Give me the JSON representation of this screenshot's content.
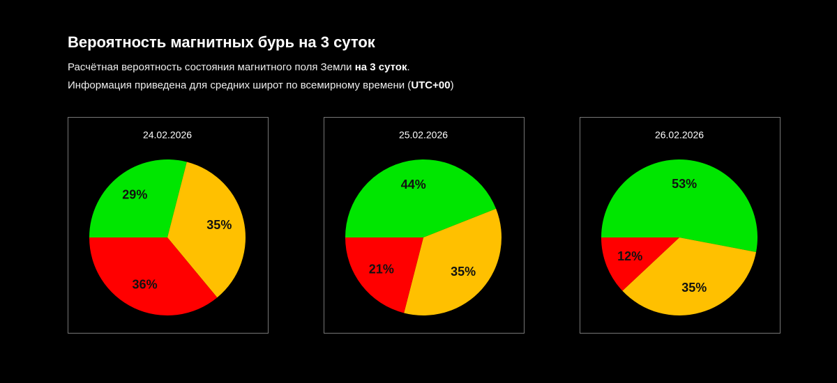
{
  "header": {
    "title": "Вероятность магнитных бурь на 3 суток",
    "line1": [
      "Расчётная вероятность состояния магнитного поля Земли ",
      "на 3 суток",
      "."
    ],
    "line2": [
      "Информация приведена для средних широт по всемирному времени (",
      "UTC+00",
      ")"
    ]
  },
  "chart_data": [
    {
      "type": "pie",
      "title": "24.02.2026",
      "values": [
        29,
        35,
        36
      ],
      "value_labels": [
        "29%",
        "35%",
        "36%"
      ],
      "colors": [
        "#00e600",
        "#ffc000",
        "#ff0000"
      ]
    },
    {
      "type": "pie",
      "title": "25.02.2026",
      "values": [
        44,
        35,
        21
      ],
      "value_labels": [
        "44%",
        "35%",
        "21%"
      ],
      "colors": [
        "#00e600",
        "#ffc000",
        "#ff0000"
      ]
    },
    {
      "type": "pie",
      "title": "26.02.2026",
      "values": [
        53,
        35,
        12
      ],
      "value_labels": [
        "53%",
        "35%",
        "12%"
      ],
      "colors": [
        "#00e600",
        "#ffc000",
        "#ff0000"
      ]
    }
  ]
}
